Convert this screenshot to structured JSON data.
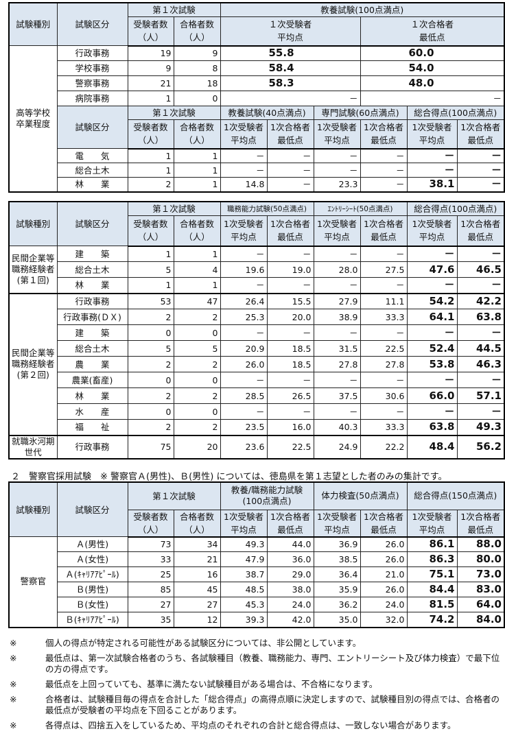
{
  "hdr": {
    "type": "試験種別",
    "kubun": "試験区分",
    "first": "第１次試験",
    "applicants": "受験者数",
    "passers": "合格者数",
    "unit": "（人）",
    "avg1": "1次受験者",
    "avg2": "平均点",
    "min1": "1次合格者",
    "min2": "最低点",
    "avg1w": "１次受験者",
    "min1w": "１次合格者"
  },
  "table1": {
    "group": "高等学校\n卒業程度",
    "subject": "教養試験(100点満点)",
    "rows": [
      {
        "kubun": "行政事務",
        "applicants": "19",
        "passers": "9",
        "avg": "55.8",
        "min": "60.0"
      },
      {
        "kubun": "学校事務",
        "applicants": "9",
        "passers": "8",
        "avg": "58.4",
        "min": "54.0"
      },
      {
        "kubun": "警察事務",
        "applicants": "21",
        "passers": "18",
        "avg": "58.3",
        "min": "48.0"
      },
      {
        "kubun": "病院事務",
        "applicants": "1",
        "passers": "0",
        "avg": "－",
        "min": "－"
      }
    ],
    "sub_subjects": [
      "教養試験(40点満点)",
      "専門試験(60点満点)",
      "総合得点(100点満点)"
    ],
    "sub_rows": [
      {
        "kubun": "電　　気",
        "v": [
          "1",
          "1",
          "－",
          "－",
          "－",
          "－",
          "－",
          "－"
        ]
      },
      {
        "kubun": "総合土木",
        "v": [
          "1",
          "1",
          "－",
          "－",
          "－",
          "－",
          "－",
          "－"
        ]
      },
      {
        "kubun": "林　　業",
        "v": [
          "2",
          "1",
          "14.8",
          "－",
          "23.3",
          "－",
          "38.1",
          "－"
        ]
      }
    ]
  },
  "table2": {
    "subjects": [
      "職務能力試験(50点満点)",
      "ｴﾝﾄﾘｰｼｰﾄ(50点満点)",
      "総合得点(100点満点)"
    ],
    "groups": [
      {
        "label": "民間企業等\n職務経験者\n(第１回)",
        "rows": [
          {
            "kubun": "建　　築",
            "v": [
              "1",
              "1",
              "－",
              "－",
              "－",
              "－",
              "－",
              "－"
            ]
          },
          {
            "kubun": "総合土木",
            "v": [
              "5",
              "4",
              "19.6",
              "19.0",
              "28.0",
              "27.5",
              "47.6",
              "46.5"
            ]
          },
          {
            "kubun": "林　　業",
            "v": [
              "1",
              "1",
              "－",
              "－",
              "－",
              "－",
              "－",
              "－"
            ]
          }
        ]
      },
      {
        "label": "民間企業等\n職務経験者\n(第２回)",
        "rows": [
          {
            "kubun": "行政事務",
            "v": [
              "53",
              "47",
              "26.4",
              "15.5",
              "27.9",
              "11.1",
              "54.2",
              "42.2"
            ]
          },
          {
            "kubun": "行政事務(ＤＸ)",
            "v": [
              "2",
              "2",
              "25.3",
              "20.0",
              "38.9",
              "33.3",
              "64.1",
              "63.8"
            ]
          },
          {
            "kubun": "建　　築",
            "v": [
              "0",
              "0",
              "－",
              "－",
              "－",
              "－",
              "－",
              "－"
            ]
          },
          {
            "kubun": "総合土木",
            "v": [
              "5",
              "5",
              "20.9",
              "18.5",
              "31.5",
              "22.5",
              "52.4",
              "44.5"
            ]
          },
          {
            "kubun": "農　　業",
            "v": [
              "2",
              "2",
              "26.0",
              "18.5",
              "27.8",
              "27.8",
              "53.8",
              "46.3"
            ]
          },
          {
            "kubun": "農業(畜産)",
            "v": [
              "0",
              "0",
              "－",
              "－",
              "－",
              "－",
              "－",
              "－"
            ]
          },
          {
            "kubun": "林　　業",
            "v": [
              "2",
              "2",
              "28.5",
              "26.5",
              "37.5",
              "30.6",
              "66.0",
              "57.1"
            ]
          },
          {
            "kubun": "水　　産",
            "v": [
              "0",
              "0",
              "－",
              "－",
              "－",
              "－",
              "－",
              "－"
            ]
          },
          {
            "kubun": "福　　祉",
            "v": [
              "2",
              "2",
              "23.5",
              "16.0",
              "40.3",
              "33.3",
              "63.8",
              "49.3"
            ]
          }
        ]
      },
      {
        "label": "就職氷河期\n世代",
        "rows": [
          {
            "kubun": "行政事務",
            "v": [
              "75",
              "20",
              "23.6",
              "22.5",
              "24.9",
              "22.2",
              "48.4",
              "56.2"
            ]
          }
        ]
      }
    ]
  },
  "section2_title": "２　警察官採用試験　※ 警察官Ａ(男性)、Ｂ(男性) については、徳島県を第１志望とした者のみの集計です。",
  "table3": {
    "subjects": [
      "教養/職務能力試験\n(100点満点)",
      "体力検査(50点満点)",
      "総合得点(150点満点)"
    ],
    "group": "警察官",
    "rows": [
      {
        "kubun": "Ａ(男性)",
        "v": [
          "73",
          "34",
          "49.3",
          "44.0",
          "36.9",
          "26.0",
          "86.1",
          "88.0"
        ]
      },
      {
        "kubun": "Ａ(女性)",
        "v": [
          "33",
          "21",
          "47.9",
          "36.0",
          "38.5",
          "26.0",
          "86.3",
          "80.0"
        ]
      },
      {
        "kubun": "Ａ(ｷｬﾘｱｱﾋﾟｰﾙ)",
        "v": [
          "25",
          "16",
          "38.7",
          "29.0",
          "36.4",
          "21.0",
          "75.1",
          "73.0"
        ]
      },
      {
        "kubun": "Ｂ(男性)",
        "v": [
          "85",
          "45",
          "48.5",
          "38.0",
          "35.9",
          "26.0",
          "84.4",
          "83.0"
        ]
      },
      {
        "kubun": "Ｂ(女性)",
        "v": [
          "27",
          "27",
          "45.3",
          "24.0",
          "36.2",
          "24.0",
          "81.5",
          "64.0"
        ]
      },
      {
        "kubun": "Ｂ(ｷｬﾘｱｱﾋﾟｰﾙ)",
        "v": [
          "35",
          "12",
          "39.3",
          "42.0",
          "35.0",
          "32.0",
          "74.2",
          "84.0"
        ]
      }
    ]
  },
  "notes": [
    {
      "mark": "※",
      "text": "個人の得点が特定される可能性がある試験区分については、非公開としています。"
    },
    {
      "mark": "※",
      "text": "最低点は、第一次試験合格者のうち、各試験種目（教養、職務能力、専門、エントリーシート及び体力検査）で最下位の方の得点です。"
    },
    {
      "mark": "※",
      "text": "最低点を上回っていても、基準に満たない試験種目がある場合は、不合格になります。"
    },
    {
      "mark": "※",
      "text": "合格者は、試験種目毎の得点を合計した「総合得点」の高得点順に決定しますので、試験種目別の得点では、合格者の最低点が受験者の平均点を下回ることがあります。"
    },
    {
      "mark": "※",
      "text": "各得点は、四捨五入をしているため、平均点のそれぞれの合計と総合得点は、一致しない場合があります。"
    }
  ]
}
